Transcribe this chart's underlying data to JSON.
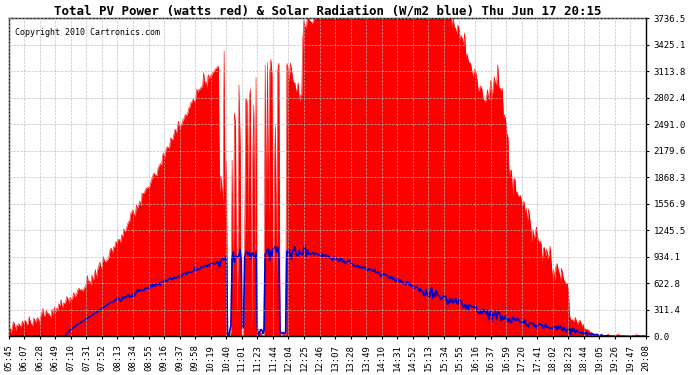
{
  "title": "Total PV Power (watts red) & Solar Radiation (W/m2 blue) Thu Jun 17 20:15",
  "copyright": "Copyright 2010 Cartronics.com",
  "background_color": "#ffffff",
  "plot_bg_color": "#ffffff",
  "y_ticks": [
    0.0,
    311.4,
    622.8,
    934.1,
    1245.5,
    1556.9,
    1868.3,
    2179.6,
    2491.0,
    2802.4,
    3113.8,
    3425.1,
    3736.5
  ],
  "y_max": 3736.5,
  "x_labels": [
    "05:45",
    "06:07",
    "06:28",
    "06:49",
    "07:10",
    "07:31",
    "07:52",
    "08:13",
    "08:34",
    "08:55",
    "09:16",
    "09:37",
    "09:58",
    "10:19",
    "10:40",
    "11:01",
    "11:23",
    "11:44",
    "12:04",
    "12:25",
    "12:46",
    "13:07",
    "13:28",
    "13:49",
    "14:10",
    "14:31",
    "14:52",
    "15:13",
    "15:34",
    "15:55",
    "16:16",
    "16:37",
    "16:59",
    "17:20",
    "17:41",
    "18:02",
    "18:23",
    "18:44",
    "19:05",
    "19:26",
    "19:47",
    "20:08"
  ],
  "pv_color": "#ff0000",
  "solar_color": "#0000cc",
  "grid_color": "#bbbbbb",
  "title_fontsize": 9,
  "axis_fontsize": 6.5
}
